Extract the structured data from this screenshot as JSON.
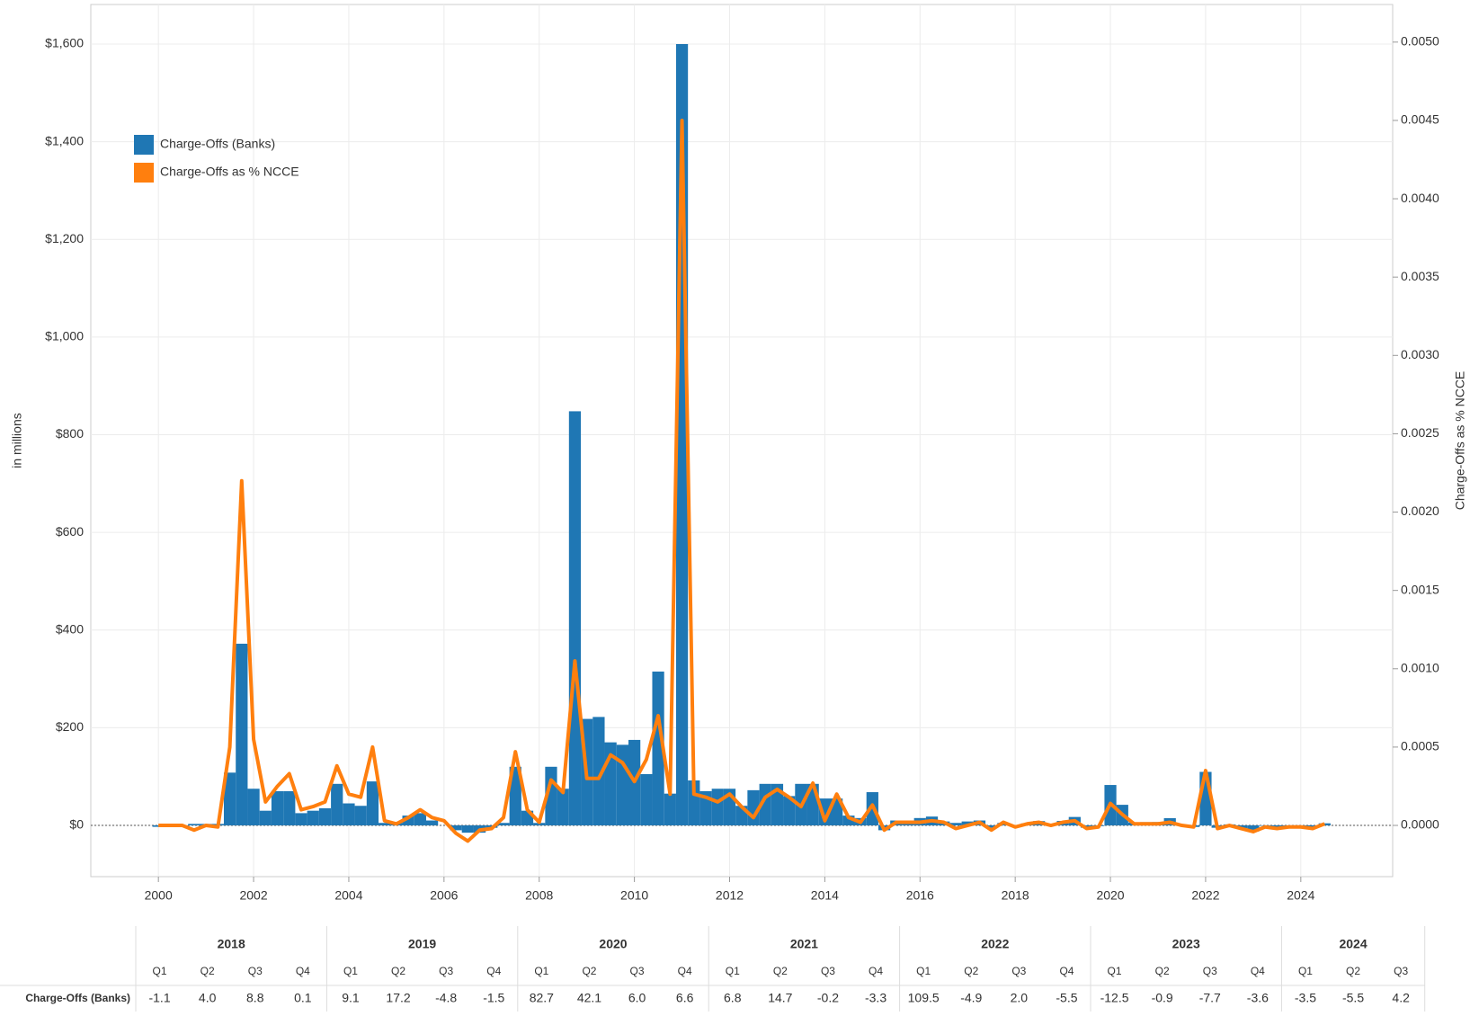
{
  "chart_data": {
    "type": "bar-line",
    "y_label": "in millions",
    "y2_label": "Charge-Offs as % NCCE",
    "x": [
      2000,
      2000.25,
      2000.5,
      2000.75,
      2001,
      2001.25,
      2001.5,
      2001.75,
      2002,
      2002.25,
      2002.5,
      2002.75,
      2003,
      2003.25,
      2003.5,
      2003.75,
      2004,
      2004.25,
      2004.5,
      2004.75,
      2005,
      2005.25,
      2005.5,
      2005.75,
      2006,
      2006.25,
      2006.5,
      2006.75,
      2007,
      2007.25,
      2007.5,
      2007.75,
      2008,
      2008.25,
      2008.5,
      2008.75,
      2009,
      2009.25,
      2009.5,
      2009.75,
      2010,
      2010.25,
      2010.5,
      2010.75,
      2011,
      2011.25,
      2011.5,
      2011.75,
      2012,
      2012.25,
      2012.5,
      2012.75,
      2013,
      2013.25,
      2013.5,
      2013.75,
      2014,
      2014.25,
      2014.5,
      2014.75,
      2015,
      2015.25,
      2015.5,
      2015.75,
      2016,
      2016.25,
      2016.5,
      2016.75,
      2017,
      2017.25,
      2017.5,
      2017.75,
      2018,
      2018.25,
      2018.5,
      2018.75,
      2019,
      2019.25,
      2019.5,
      2019.75,
      2020,
      2020.25,
      2020.5,
      2020.75,
      2021,
      2021.25,
      2021.5,
      2021.75,
      2022,
      2022.25,
      2022.5,
      2022.75,
      2023,
      2023.25,
      2023.5,
      2023.75,
      2024,
      2024.25,
      2024.5
    ],
    "series": [
      {
        "name": "Charge-Offs (Banks)",
        "type": "bar",
        "color": "#1f77b4",
        "values": [
          -3,
          -3,
          -2,
          3,
          3,
          3,
          108,
          372,
          75,
          30,
          70,
          70,
          25,
          30,
          35,
          85,
          45,
          40,
          90,
          5,
          5,
          20,
          25,
          10,
          0,
          -10,
          -15,
          -15,
          -5,
          5,
          120,
          30,
          5,
          120,
          75,
          848,
          218,
          222,
          170,
          165,
          175,
          105,
          315,
          65,
          1600,
          92,
          70,
          75,
          75,
          40,
          72,
          85,
          85,
          60,
          85,
          85,
          55,
          55,
          20,
          15,
          68,
          -10,
          10,
          10,
          15,
          18,
          8,
          5,
          8,
          10,
          -5,
          5,
          -1.1,
          4.0,
          8.8,
          0.1,
          9.1,
          17.2,
          -4.8,
          -1.5,
          82.7,
          42.1,
          6.0,
          6.6,
          6.8,
          14.7,
          -0.2,
          -3.3,
          109.5,
          -4.9,
          2.0,
          -5.5,
          -12.5,
          -0.9,
          -7.7,
          -3.6,
          -3.5,
          -5.5,
          4.2
        ]
      },
      {
        "name": "Charge-Offs as % NCCE",
        "type": "line",
        "axis": "y2",
        "color": "#ff7f0e",
        "values": [
          0,
          0,
          0,
          -3e-05,
          0,
          -1e-05,
          0.0005,
          0.0022,
          0.00055,
          0.00015,
          0.00025,
          0.00033,
          0.0001,
          0.00012,
          0.00015,
          0.00038,
          0.0002,
          0.00018,
          0.0005,
          3e-05,
          1e-05,
          5e-05,
          0.0001,
          5e-05,
          3e-05,
          -5e-05,
          -0.0001,
          -3e-05,
          -2e-05,
          5e-05,
          0.00047,
          0.0001,
          2e-05,
          0.00029,
          0.00021,
          0.00105,
          0.0003,
          0.0003,
          0.00045,
          0.0004,
          0.00028,
          0.00042,
          0.0007,
          0.0002,
          0.0045,
          0.0002,
          0.00018,
          0.00015,
          0.0002,
          0.00012,
          5e-05,
          0.00018,
          0.00023,
          0.00018,
          0.00012,
          0.00027,
          3e-05,
          0.0002,
          5e-05,
          2e-05,
          0.00013,
          -3e-05,
          2e-05,
          2e-05,
          2e-05,
          3e-05,
          2e-05,
          -2e-05,
          0,
          2e-05,
          -3e-05,
          2e-05,
          -1e-05,
          1e-05,
          2e-05,
          0,
          2e-05,
          3e-05,
          -2e-05,
          -1e-05,
          0.00014,
          7e-05,
          1e-05,
          1e-05,
          1e-05,
          2e-05,
          0,
          -1e-05,
          0.00035,
          -2e-05,
          0,
          -2e-05,
          -4e-05,
          -1e-05,
          -2e-05,
          -1e-05,
          -1e-05,
          -2e-05,
          1e-05
        ]
      }
    ],
    "xlim": [
      1998.58,
      2025.93
    ],
    "xticks": [
      2000,
      2002,
      2004,
      2006,
      2008,
      2010,
      2012,
      2014,
      2016,
      2018,
      2020,
      2022,
      2024
    ],
    "ylim": [
      -105,
      1681
    ],
    "yticks": [
      {
        "value": 0,
        "label": "$0"
      },
      {
        "value": 200,
        "label": "$200"
      },
      {
        "value": 400,
        "label": "$400"
      },
      {
        "value": 600,
        "label": "$600"
      },
      {
        "value": 800,
        "label": "$800"
      },
      {
        "value": 1000,
        "label": "$1,000"
      },
      {
        "value": 1200,
        "label": "$1,200"
      },
      {
        "value": 1400,
        "label": "$1,400"
      },
      {
        "value": 1600,
        "label": "$1,600"
      }
    ],
    "y2lim": [
      -0.000327,
      0.00524
    ],
    "y2ticks": [
      {
        "value": 0,
        "label": "0.0000"
      },
      {
        "value": 0.0005,
        "label": "0.0005"
      },
      {
        "value": 0.001,
        "label": "0.0010"
      },
      {
        "value": 0.0015,
        "label": "0.0015"
      },
      {
        "value": 0.002,
        "label": "0.0020"
      },
      {
        "value": 0.0025,
        "label": "0.0025"
      },
      {
        "value": 0.003,
        "label": "0.0030"
      },
      {
        "value": 0.0035,
        "label": "0.0035"
      },
      {
        "value": 0.004,
        "label": "0.0040"
      },
      {
        "value": 0.0045,
        "label": "0.0045"
      },
      {
        "value": 0.005,
        "label": "0.0050"
      }
    ],
    "grid": true,
    "legend": "upper left"
  },
  "table": {
    "row_label": "Charge-Offs (Banks)",
    "years": [
      {
        "year": "2018",
        "quarters": [
          "Q1",
          "Q2",
          "Q3",
          "Q4"
        ]
      },
      {
        "year": "2019",
        "quarters": [
          "Q1",
          "Q2",
          "Q3",
          "Q4"
        ]
      },
      {
        "year": "2020",
        "quarters": [
          "Q1",
          "Q2",
          "Q3",
          "Q4"
        ]
      },
      {
        "year": "2021",
        "quarters": [
          "Q1",
          "Q2",
          "Q3",
          "Q4"
        ]
      },
      {
        "year": "2022",
        "quarters": [
          "Q1",
          "Q2",
          "Q3",
          "Q4"
        ]
      },
      {
        "year": "2023",
        "quarters": [
          "Q1",
          "Q2",
          "Q3",
          "Q4"
        ]
      },
      {
        "year": "2024",
        "quarters": [
          "Q1",
          "Q2",
          "Q3"
        ]
      }
    ],
    "values": [
      "-1.1",
      "4.0",
      "8.8",
      "0.1",
      "9.1",
      "17.2",
      "-4.8",
      "-1.5",
      "82.7",
      "42.1",
      "6.0",
      "6.6",
      "6.8",
      "14.7",
      "-0.2",
      "-3.3",
      "109.5",
      "-4.9",
      "2.0",
      "-5.5",
      "-12.5",
      "-0.9",
      "-7.7",
      "-3.6",
      "-3.5",
      "-5.5",
      "4.2"
    ]
  }
}
